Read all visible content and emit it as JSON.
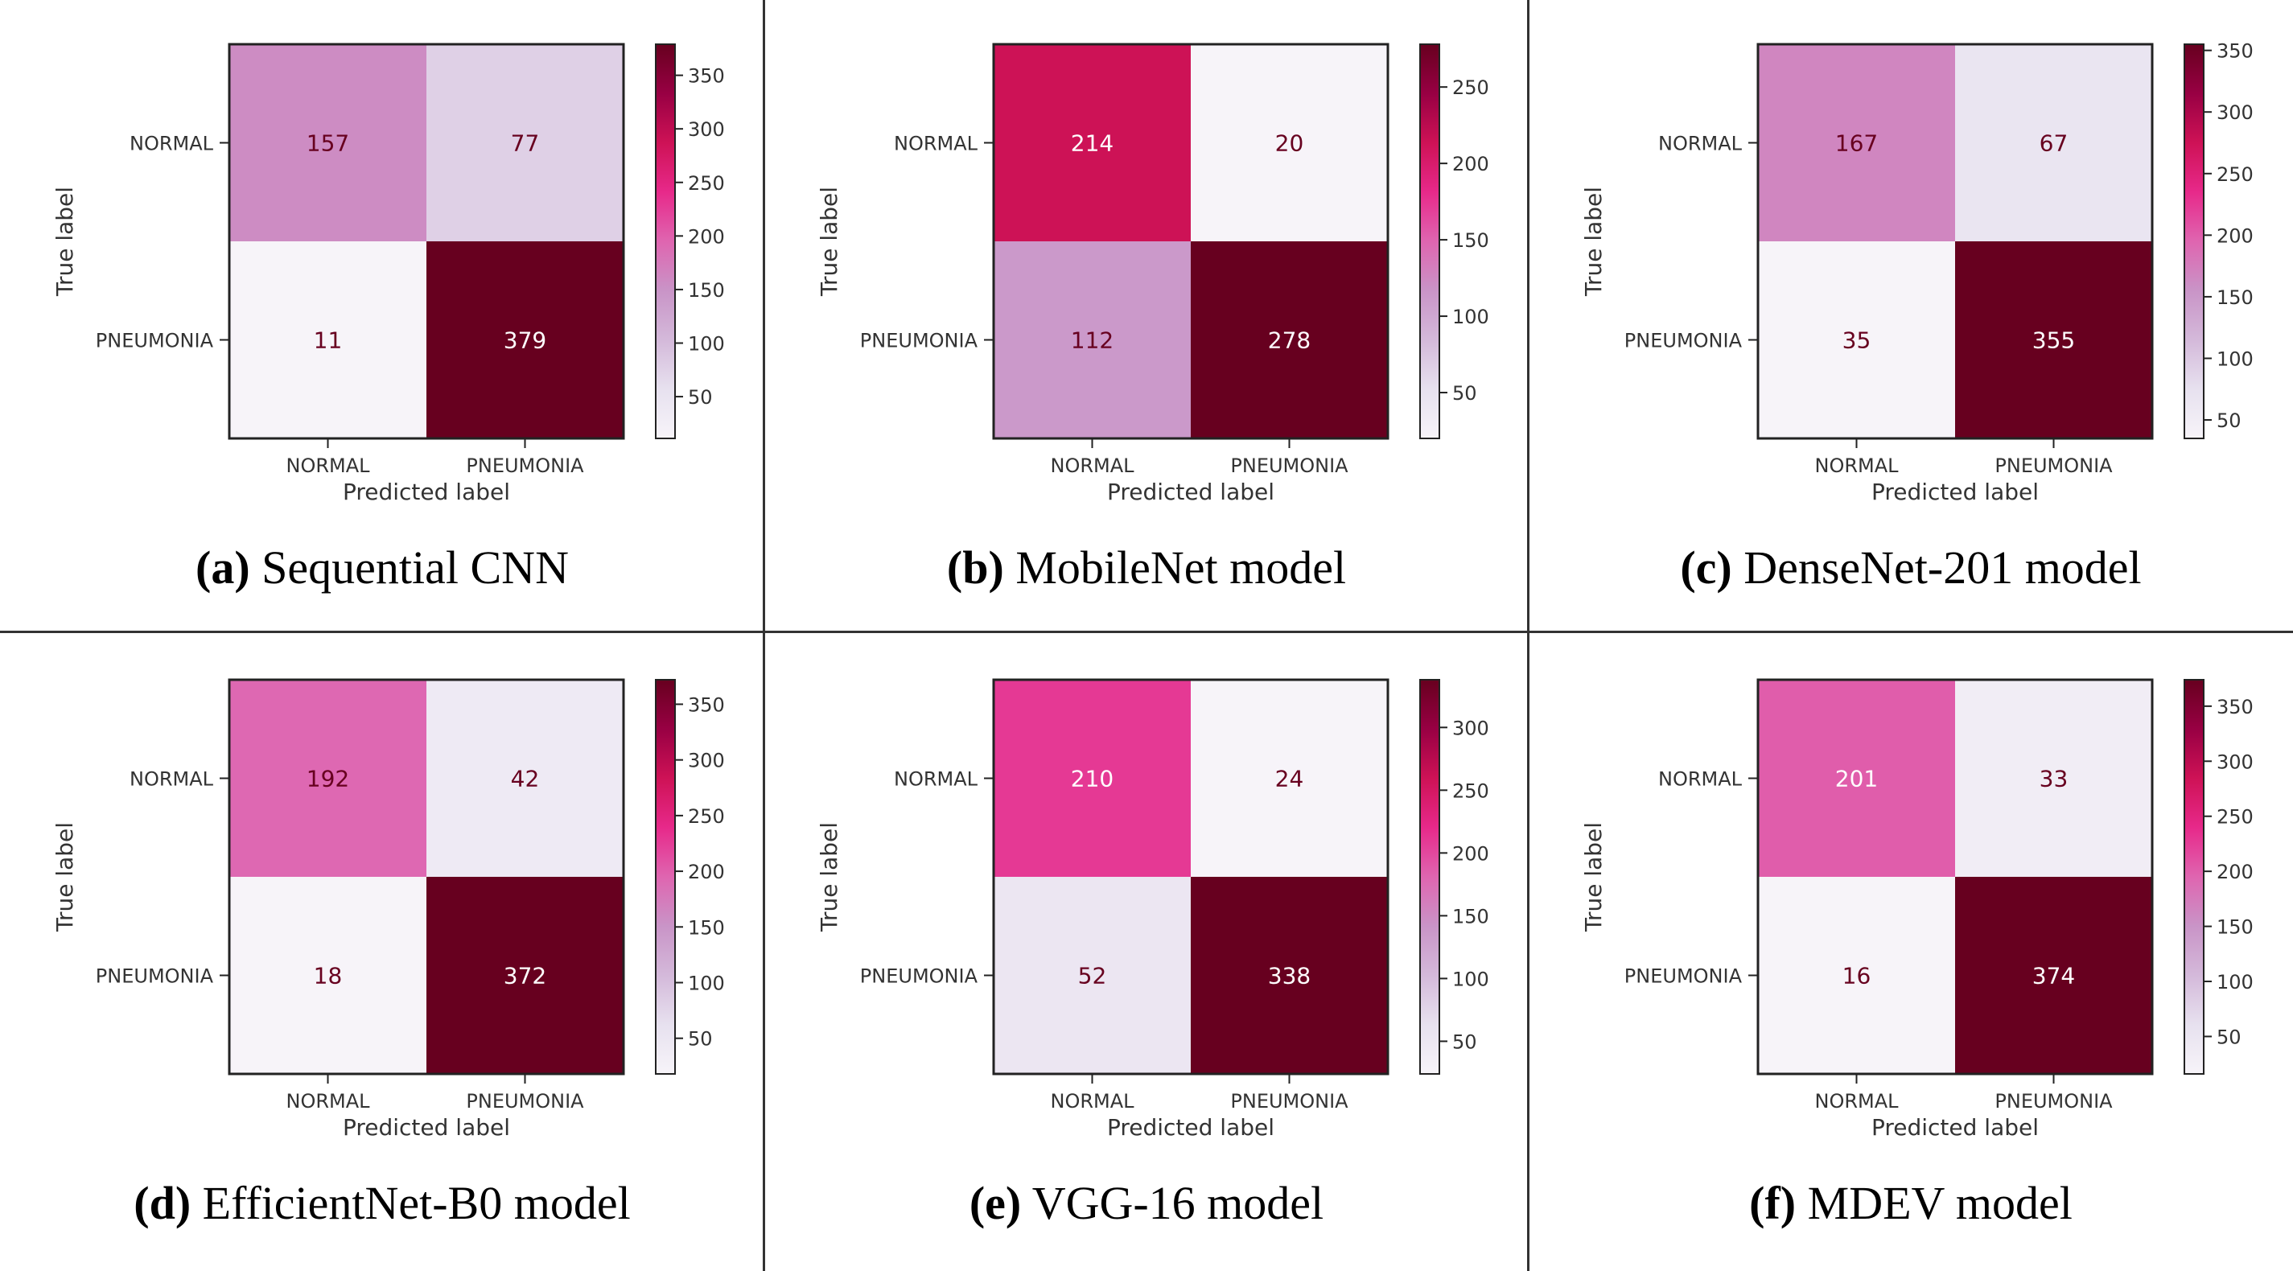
{
  "chart_data": [
    {
      "type": "heatmap",
      "caption_label": "(a)",
      "caption_title": "Sequential CNN",
      "xlabel": "Predicted label",
      "ylabel": "True label",
      "x_categories": [
        "NORMAL",
        "PNEUMONIA"
      ],
      "y_categories": [
        "NORMAL",
        "PNEUMONIA"
      ],
      "values": [
        [
          157,
          77
        ],
        [
          11,
          379
        ]
      ],
      "colorbar_ticks": [
        50,
        100,
        150,
        200,
        250,
        300,
        350
      ],
      "colormap": "PuRd"
    },
    {
      "type": "heatmap",
      "caption_label": "(b)",
      "caption_title": "MobileNet model",
      "xlabel": "Predicted label",
      "ylabel": "True label",
      "x_categories": [
        "NORMAL",
        "PNEUMONIA"
      ],
      "y_categories": [
        "NORMAL",
        "PNEUMONIA"
      ],
      "values": [
        [
          214,
          20
        ],
        [
          112,
          278
        ]
      ],
      "colorbar_ticks": [
        50,
        100,
        150,
        200,
        250
      ],
      "colormap": "PuRd"
    },
    {
      "type": "heatmap",
      "caption_label": "(c)",
      "caption_title": "DenseNet-201 model",
      "xlabel": "Predicted label",
      "ylabel": "True label",
      "x_categories": [
        "NORMAL",
        "PNEUMONIA"
      ],
      "y_categories": [
        "NORMAL",
        "PNEUMONIA"
      ],
      "values": [
        [
          167,
          67
        ],
        [
          35,
          355
        ]
      ],
      "colorbar_ticks": [
        50,
        100,
        150,
        200,
        250,
        300,
        350
      ],
      "colormap": "PuRd"
    },
    {
      "type": "heatmap",
      "caption_label": "(d)",
      "caption_title": "EfficientNet-B0 model",
      "xlabel": "Predicted label",
      "ylabel": "True label",
      "x_categories": [
        "NORMAL",
        "PNEUMONIA"
      ],
      "y_categories": [
        "NORMAL",
        "PNEUMONIA"
      ],
      "values": [
        [
          192,
          42
        ],
        [
          18,
          372
        ]
      ],
      "colorbar_ticks": [
        50,
        100,
        150,
        200,
        250,
        300,
        350
      ],
      "colormap": "PuRd"
    },
    {
      "type": "heatmap",
      "caption_label": "(e)",
      "caption_title": "VGG-16 model",
      "xlabel": "Predicted label",
      "ylabel": "True label",
      "x_categories": [
        "NORMAL",
        "PNEUMONIA"
      ],
      "y_categories": [
        "NORMAL",
        "PNEUMONIA"
      ],
      "values": [
        [
          210,
          24
        ],
        [
          52,
          338
        ]
      ],
      "colorbar_ticks": [
        50,
        100,
        150,
        200,
        250,
        300
      ],
      "colormap": "PuRd"
    },
    {
      "type": "heatmap",
      "caption_label": "(f)",
      "caption_title": "MDEV model",
      "xlabel": "Predicted label",
      "ylabel": "True label",
      "x_categories": [
        "NORMAL",
        "PNEUMONIA"
      ],
      "y_categories": [
        "NORMAL",
        "PNEUMONIA"
      ],
      "values": [
        [
          201,
          33
        ],
        [
          16,
          374
        ]
      ],
      "colorbar_ticks": [
        50,
        100,
        150,
        200,
        250,
        300,
        350
      ],
      "colormap": "PuRd"
    }
  ],
  "colors": {
    "text_dark": "#67001f",
    "text_light": "#ffffff",
    "axis": "#222222",
    "divider": "#333333"
  }
}
